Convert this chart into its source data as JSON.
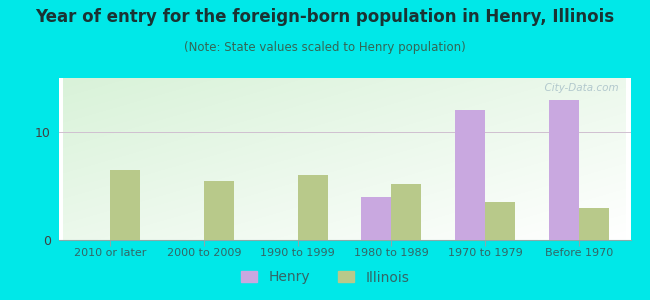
{
  "title": "Year of entry for the foreign-born population in Henry, Illinois",
  "subtitle": "(Note: State values scaled to Henry population)",
  "categories": [
    "2010 or later",
    "2000 to 2009",
    "1990 to 1999",
    "1980 to 1989",
    "1970 to 1979",
    "Before 1970"
  ],
  "henry_values": [
    0,
    0,
    0,
    4.0,
    12.0,
    13.0
  ],
  "illinois_values": [
    6.5,
    5.5,
    6.0,
    5.2,
    3.5,
    3.0
  ],
  "henry_color": "#c9a8e0",
  "illinois_color": "#b8c98a",
  "background_outer": "#00e8e8",
  "ylim": [
    0,
    15
  ],
  "yticks": [
    0,
    10
  ],
  "bar_width": 0.32,
  "title_fontsize": 12,
  "subtitle_fontsize": 8.5,
  "legend_fontsize": 10,
  "tick_fontsize": 8,
  "grid_color": "#d0c0d0",
  "watermark": "  City-Data.com"
}
